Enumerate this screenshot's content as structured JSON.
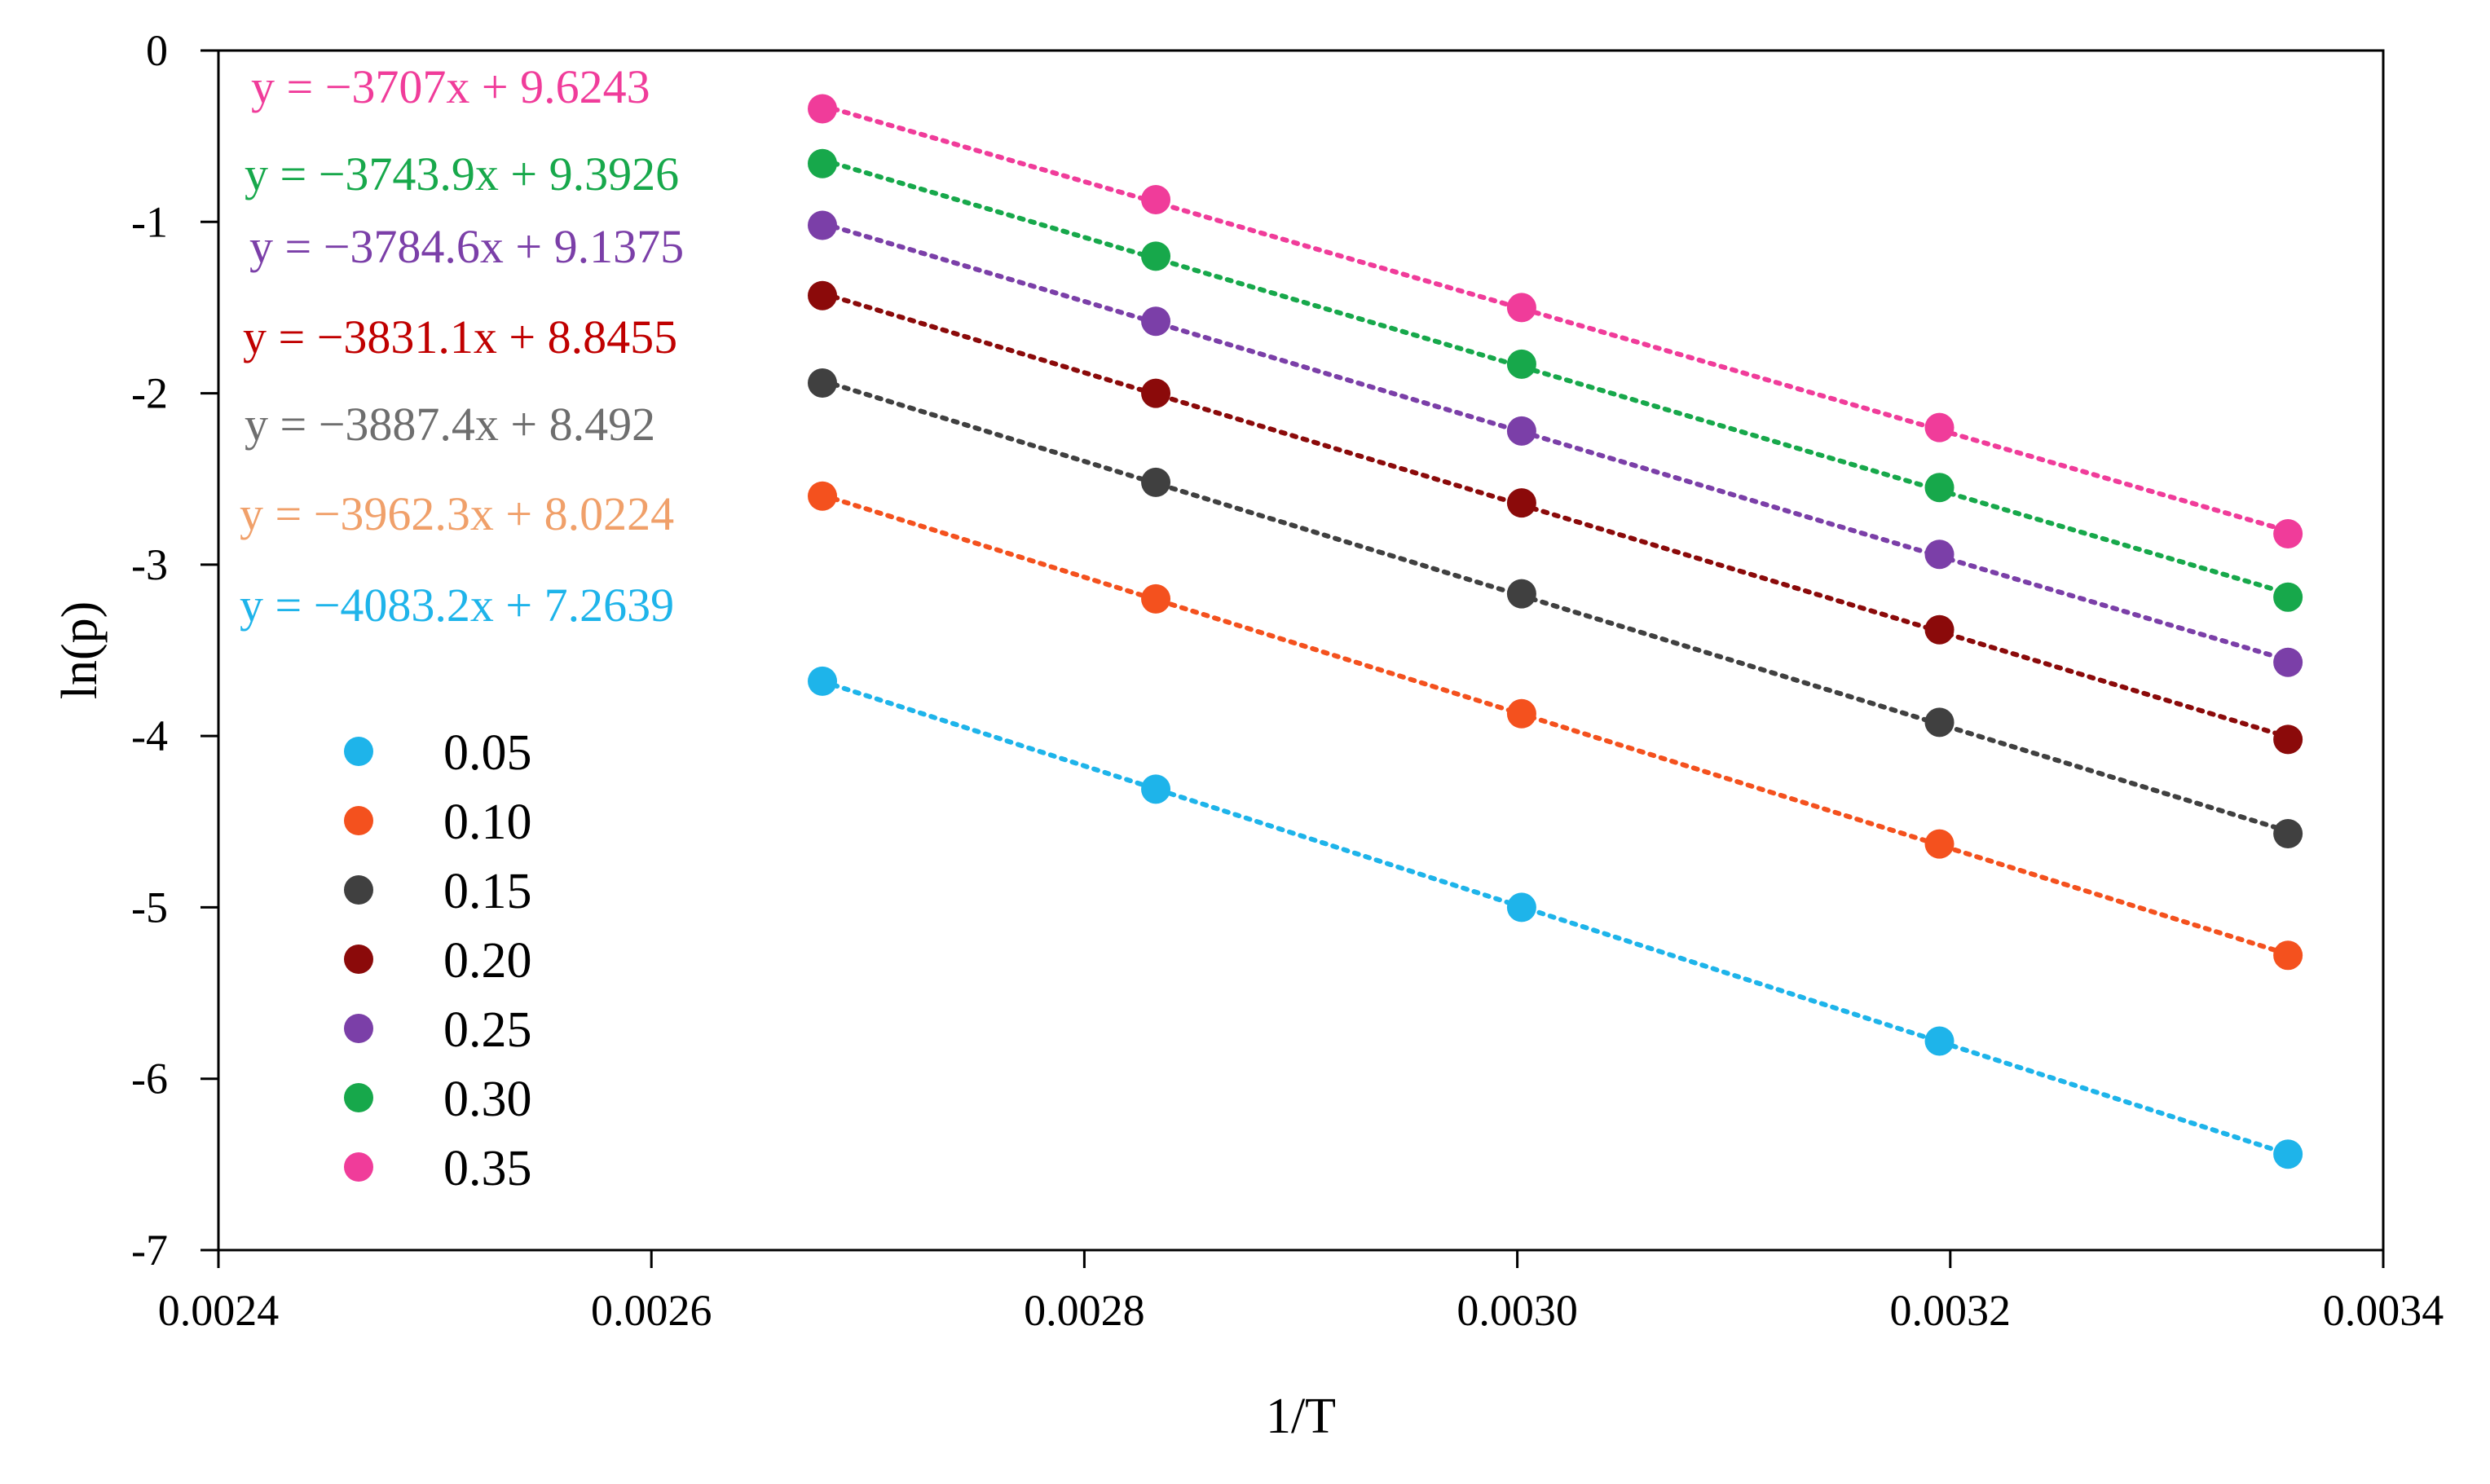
{
  "chart_data": {
    "type": "scatter",
    "title": "",
    "xlabel": "1/T",
    "ylabel": "ln(p)",
    "xlim": [
      0.0024,
      0.0034
    ],
    "ylim": [
      -7,
      0
    ],
    "x_ticks": [
      0.0024,
      0.0026,
      0.0028,
      0.003,
      0.0032,
      0.0034
    ],
    "x_tick_labels": [
      "0.0024",
      "0.0026",
      "0.0028",
      "0.0030",
      "0.0032",
      "0.0034"
    ],
    "y_ticks": [
      0,
      -1,
      -2,
      -3,
      -4,
      -5,
      -6,
      -7
    ],
    "y_tick_labels": [
      "0",
      "-1",
      "-2",
      "-3",
      "-4",
      "-5",
      "-6",
      "-7"
    ],
    "grid": false,
    "legend_position": "bottom-left",
    "x": [
      0.002679,
      0.002833,
      0.003002,
      0.003195,
      0.003356
    ],
    "series": [
      {
        "name": "0.05",
        "color": "#1EB4EA",
        "line_color": "#1EB4EA",
        "equation": "y = −4083.2x + 7.2639",
        "equation_color": "#1EB4EA",
        "values": [
          -3.68,
          -4.31,
          -5.0,
          -5.78,
          -6.44
        ]
      },
      {
        "name": "0.10",
        "color": "#F4511E",
        "line_color": "#F4511E",
        "equation": "y = −3962.3x + 8.0224",
        "equation_color": "#F0A06A",
        "values": [
          -2.6,
          -3.2,
          -3.87,
          -4.63,
          -5.28
        ]
      },
      {
        "name": "0.15",
        "color": "#404040",
        "line_color": "#404040",
        "equation": "y = −3887.4x + 8.492",
        "equation_color": "#6E6E6E",
        "values": [
          -1.94,
          -2.52,
          -3.17,
          -3.92,
          -4.57
        ]
      },
      {
        "name": "0.20",
        "color": "#8B0A0A",
        "line_color": "#8B0A0A",
        "equation": "y = −3831.1x + 8.8455",
        "equation_color": "#C00000",
        "values": [
          -1.43,
          -2.0,
          -2.64,
          -3.38,
          -4.02
        ]
      },
      {
        "name": "0.25",
        "color": "#7B3FA8",
        "line_color": "#7B3FA8",
        "equation": "y = −3784.6x + 9.1375",
        "equation_color": "#7B3FA8",
        "values": [
          -1.02,
          -1.58,
          -2.22,
          -2.94,
          -3.57
        ]
      },
      {
        "name": "0.30",
        "color": "#17A84B",
        "line_color": "#17A84B",
        "equation": "y = −3743.9x + 9.3926",
        "equation_color": "#17A84B",
        "values": [
          -0.66,
          -1.2,
          -1.83,
          -2.55,
          -3.19
        ]
      },
      {
        "name": "0.35",
        "color": "#F03C9A",
        "line_color": "#F03C9A",
        "equation": "y = −3707x + 9.6243",
        "equation_color": "#F03C9A",
        "values": [
          -0.34,
          -0.87,
          -1.5,
          -2.2,
          -2.82
        ]
      }
    ]
  }
}
